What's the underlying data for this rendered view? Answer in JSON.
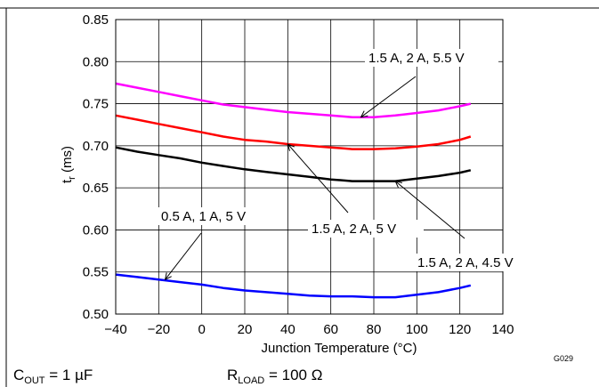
{
  "chart_data": {
    "type": "line",
    "xlabel": "Junction Temperature (°C)",
    "ylabel": {
      "main": "t",
      "sub": "r",
      "rest": " (ms)"
    },
    "xlim": [
      -40,
      140
    ],
    "ylim": [
      0.5,
      0.85
    ],
    "x_ticks": [
      "−40",
      "−20",
      "0",
      "20",
      "40",
      "60",
      "80",
      "100",
      "120",
      "140"
    ],
    "x_tick_values": [
      -40,
      -20,
      0,
      20,
      40,
      60,
      80,
      100,
      120,
      140
    ],
    "y_ticks": [
      "0.50",
      "0.55",
      "0.60",
      "0.65",
      "0.70",
      "0.75",
      "0.80",
      "0.85"
    ],
    "y_tick_values": [
      0.5,
      0.55,
      0.6,
      0.65,
      0.7,
      0.75,
      0.8,
      0.85
    ],
    "grid": true,
    "series": [
      {
        "color": "#ff00ff",
        "x": [
          -40,
          -30,
          -20,
          -10,
          0,
          10,
          20,
          30,
          40,
          50,
          60,
          70,
          80,
          90,
          100,
          110,
          120,
          125
        ],
        "y": [
          0.774,
          0.769,
          0.764,
          0.759,
          0.754,
          0.749,
          0.746,
          0.743,
          0.74,
          0.738,
          0.736,
          0.734,
          0.734,
          0.736,
          0.739,
          0.742,
          0.747,
          0.75
        ]
      },
      {
        "color": "#ff0000",
        "x": [
          -40,
          -30,
          -20,
          -10,
          0,
          10,
          20,
          30,
          40,
          50,
          60,
          70,
          80,
          90,
          100,
          110,
          120,
          125
        ],
        "y": [
          0.736,
          0.731,
          0.726,
          0.721,
          0.716,
          0.711,
          0.707,
          0.705,
          0.702,
          0.7,
          0.698,
          0.696,
          0.696,
          0.697,
          0.699,
          0.702,
          0.707,
          0.711
        ]
      },
      {
        "color": "#000000",
        "x": [
          -40,
          -30,
          -20,
          -10,
          0,
          10,
          20,
          30,
          40,
          50,
          60,
          70,
          80,
          90,
          100,
          110,
          120,
          125
        ],
        "y": [
          0.698,
          0.693,
          0.689,
          0.685,
          0.68,
          0.676,
          0.672,
          0.669,
          0.666,
          0.663,
          0.66,
          0.658,
          0.658,
          0.658,
          0.661,
          0.664,
          0.668,
          0.671
        ]
      },
      {
        "color": "#0000ff",
        "x": [
          -40,
          -30,
          -20,
          -10,
          0,
          10,
          20,
          30,
          40,
          50,
          60,
          70,
          80,
          90,
          100,
          110,
          120,
          125
        ],
        "y": [
          0.547,
          0.544,
          0.541,
          0.538,
          0.535,
          0.531,
          0.528,
          0.526,
          0.524,
          0.522,
          0.521,
          0.521,
          0.52,
          0.52,
          0.523,
          0.526,
          0.531,
          0.534
        ]
      }
    ],
    "annotations": [
      {
        "text": "1.5 A, 2 A, 5.5 V",
        "tip_x": 74,
        "tip_y": 0.734
      },
      {
        "text": "1.5 A, 2 A, 5 V",
        "tip_x": 40,
        "tip_y": 0.702
      },
      {
        "text": "1.5 A, 2 A, 4.5 V",
        "tip_x": 90,
        "tip_y": 0.658
      },
      {
        "text": "0.5 A, 1 A, 5 V",
        "tip_x": -17,
        "tip_y": 0.541
      }
    ],
    "figure_code": "G029",
    "footer": {
      "cout": {
        "main": "C",
        "sub": "OUT",
        "rest": " = 1 µF"
      },
      "rload": {
        "main": "R",
        "sub": "LOAD",
        "rest": " = 100 Ω"
      }
    }
  }
}
